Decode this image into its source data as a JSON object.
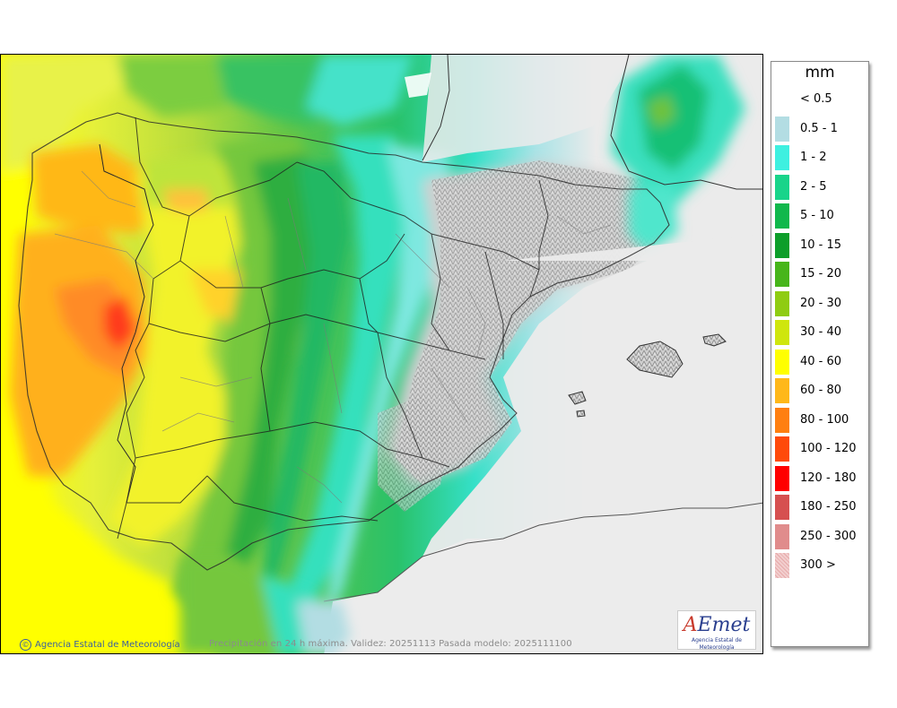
{
  "legend": {
    "unit": "mm",
    "items": [
      {
        "label": "< 0.5",
        "color": "#ffffff"
      },
      {
        "label": "0.5 - 1",
        "color": "#b3dde3"
      },
      {
        "label": "1 - 2",
        "color": "#3ef0e0"
      },
      {
        "label": "2 - 5",
        "color": "#18d48a"
      },
      {
        "label": "5 - 10",
        "color": "#10b84c"
      },
      {
        "label": "10 - 15",
        "color": "#0d9e2a"
      },
      {
        "label": "15 - 20",
        "color": "#47b51a"
      },
      {
        "label": "20 - 30",
        "color": "#8fcc12"
      },
      {
        "label": "30 - 40",
        "color": "#cfe60d"
      },
      {
        "label": "40 - 60",
        "color": "#ffff00"
      },
      {
        "label": "60 - 80",
        "color": "#ffb819"
      },
      {
        "label": "80 - 100",
        "color": "#ff7f10"
      },
      {
        "label": "100 - 120",
        "color": "#ff4a0a"
      },
      {
        "label": "120 - 180",
        "color": "#ff0000"
      },
      {
        "label": "180 - 250",
        "color": "#d65050"
      },
      {
        "label": "250 - 300",
        "color": "#e08c8c"
      },
      {
        "label": "300 >",
        "color": "#f2cece"
      }
    ]
  },
  "map": {
    "credit": "Agencia Estatal de Meteorología",
    "caption": "Precipitación en 24 h máxima. Validez: 20251113 Pasada modelo: 2025111100",
    "logo_text": "AEmet",
    "logo_subtext": "Agencia Estatal de Meteorología"
  }
}
